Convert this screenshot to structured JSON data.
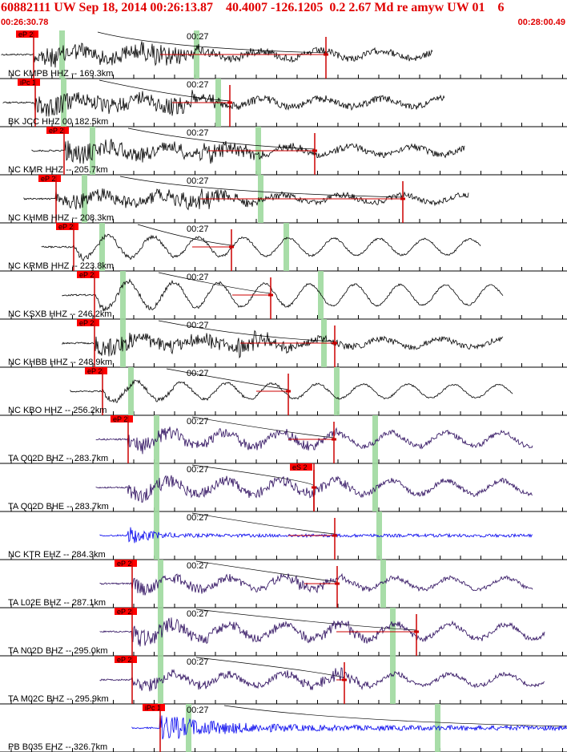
{
  "header": {
    "title": "60882111 UW Sep 18, 2014 00:26:13.87    40.4007 -126.1205  0.2 2.67 Md re amyw UW 01    6",
    "start_time": "00:26:30.78",
    "end_time": "00:28:00.49"
  },
  "colors": {
    "header_text": "#e00000",
    "pick_box": "#ff0000",
    "pick_line": "#cc0000",
    "theoretical_s": "#9fd99f",
    "trace_short_period": "#000000",
    "trace_broadband": "#2a0a5c",
    "trace_ehz": "#0000ee"
  },
  "chart_data": {
    "type": "line",
    "title": "60882111 UW Sep 18, 2014 00:26:13.87    40.4007 -126.1205  0.2 2.67 Md re amyw UW 01    6",
    "x_range": [
      "00:26:30.78",
      "00:28:00.49"
    ],
    "time_mark": "00:27",
    "series": [
      {
        "name": "NC KMPB HHZ -- 169.3km",
        "pick": "eP 2",
        "color": "#000000"
      },
      {
        "name": "BK JCC HHZ 00 182.5km",
        "pick": "iPc 1",
        "color": "#000000"
      },
      {
        "name": "NC KMR HHZ -- 205.7km",
        "pick": "eP 2",
        "color": "#000000"
      },
      {
        "name": "NC KHMB HHZ -- 208.3km",
        "pick": "eP 2",
        "color": "#000000"
      },
      {
        "name": "NC KRMB HHZ -- 223.8km",
        "pick": "eP 2",
        "color": "#000000"
      },
      {
        "name": "NC KSXB HHZ -- 246.2km",
        "pick": "eP 2",
        "color": "#000000"
      },
      {
        "name": "NC KHBB HHZ -- 248.9km",
        "pick": "eP 2",
        "color": "#000000"
      },
      {
        "name": "NC KBO HHZ -- 256.2km",
        "pick": "eP 2",
        "color": "#000000"
      },
      {
        "name": "TA Q02D BHZ -- 283.7km",
        "pick": "eP 2",
        "color": "#2a0a5c"
      },
      {
        "name": "TA Q02D BHE -- 283.7km",
        "pick": "eS 2",
        "color": "#2a0a5c"
      },
      {
        "name": "NC KTR EHZ -- 284.3km",
        "pick": "",
        "color": "#0000ee"
      },
      {
        "name": "TA L02E BHZ -- 287.1km",
        "pick": "eP 2",
        "color": "#2a0a5c"
      },
      {
        "name": "TA N02D BHZ -- 295.0km",
        "pick": "eP 2",
        "color": "#2a0a5c"
      },
      {
        "name": "TA M02C BHZ -- 295.9km",
        "pick": "eP 2",
        "color": "#2a0a5c"
      },
      {
        "name": "PB B035 EHZ -- 326.7km",
        "pick": "iPc 1",
        "color": "#0000ee"
      }
    ]
  }
}
